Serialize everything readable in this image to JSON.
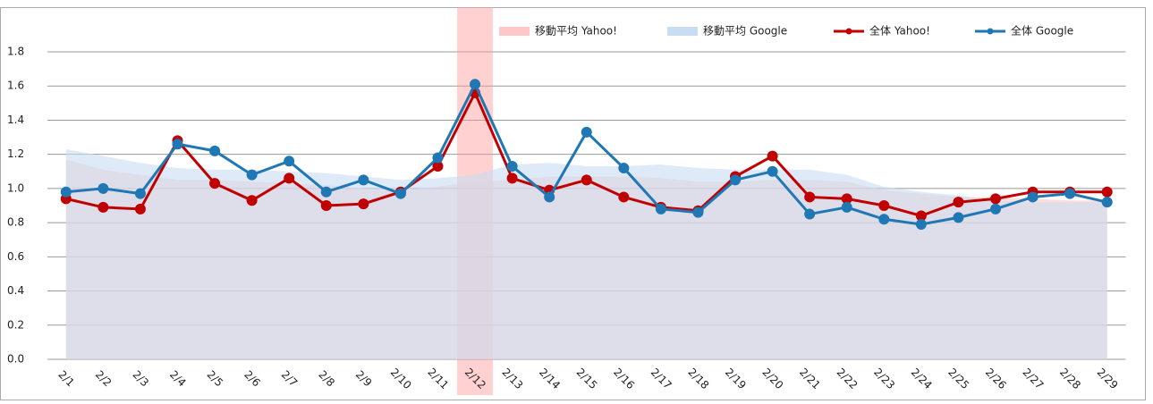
{
  "chart_data": {
    "type": "line",
    "legend": "top",
    "grid": true,
    "categories": [
      "2/1",
      "2/2",
      "2/3",
      "2/4",
      "2/5",
      "2/6",
      "2/7",
      "2/8",
      "2/9",
      "2/10",
      "2/11",
      "2/12",
      "2/13",
      "2/14",
      "2/15",
      "2/16",
      "2/17",
      "2/18",
      "2/19",
      "2/20",
      "2/21",
      "2/22",
      "2/23",
      "2/24",
      "2/25",
      "2/26",
      "2/27",
      "2/28",
      "2/29"
    ],
    "ylim": [
      0,
      1.8
    ],
    "yticks": [
      {
        "value": 0,
        "label": "0.0"
      },
      {
        "value": 0.2,
        "label": "0.2"
      },
      {
        "value": 0.4,
        "label": "0.4"
      },
      {
        "value": 0.6,
        "label": "0.6"
      },
      {
        "value": 0.8,
        "label": "0.8"
      },
      {
        "value": 1.0,
        "label": "1.0"
      },
      {
        "value": 1.2,
        "label": "1.2"
      },
      {
        "value": 1.4,
        "label": "1.4"
      },
      {
        "value": 1.6,
        "label": "1.6"
      },
      {
        "value": 1.8,
        "label": "1.8"
      }
    ],
    "series": [
      {
        "name": "移動平均 Yahoo!",
        "kind": "area",
        "color": "#ffc8c8",
        "values": [
          1.17,
          1.11,
          1.08,
          1.05,
          1.05,
          1.04,
          1.03,
          1.02,
          1.0,
          0.99,
          1.01,
          1.04,
          1.05,
          1.07,
          1.07,
          1.07,
          1.06,
          1.04,
          1.04,
          1.05,
          1.05,
          1.04,
          0.99,
          0.97,
          0.95,
          0.95,
          0.94,
          0.93,
          0.93
        ]
      },
      {
        "name": "移動平均 Google",
        "kind": "area",
        "color": "#c8dcf2",
        "values": [
          1.23,
          1.19,
          1.15,
          1.12,
          1.11,
          1.11,
          1.1,
          1.09,
          1.07,
          1.05,
          1.06,
          1.08,
          1.14,
          1.15,
          1.13,
          1.13,
          1.14,
          1.12,
          1.11,
          1.11,
          1.11,
          1.08,
          1.01,
          0.98,
          0.96,
          0.93,
          0.92,
          0.92,
          0.92
        ]
      },
      {
        "name": "全体 Yahoo!",
        "kind": "line",
        "color": "#c00000",
        "values": [
          0.94,
          0.89,
          0.88,
          1.28,
          1.03,
          0.93,
          1.06,
          0.9,
          0.91,
          0.98,
          1.13,
          1.56,
          1.06,
          0.99,
          1.05,
          0.95,
          0.89,
          0.87,
          1.07,
          1.19,
          0.95,
          0.94,
          0.9,
          0.84,
          0.92,
          0.94,
          0.98,
          0.98,
          0.98
        ]
      },
      {
        "name": "全体 Google",
        "kind": "line",
        "color": "#1f77b4",
        "values": [
          0.98,
          1.0,
          0.97,
          1.26,
          1.22,
          1.08,
          1.16,
          0.98,
          1.05,
          0.97,
          1.18,
          1.61,
          1.13,
          0.95,
          1.33,
          1.12,
          0.88,
          0.86,
          1.05,
          1.1,
          0.85,
          0.89,
          0.82,
          0.79,
          0.83,
          0.88,
          0.95,
          0.97,
          0.92
        ]
      }
    ]
  }
}
